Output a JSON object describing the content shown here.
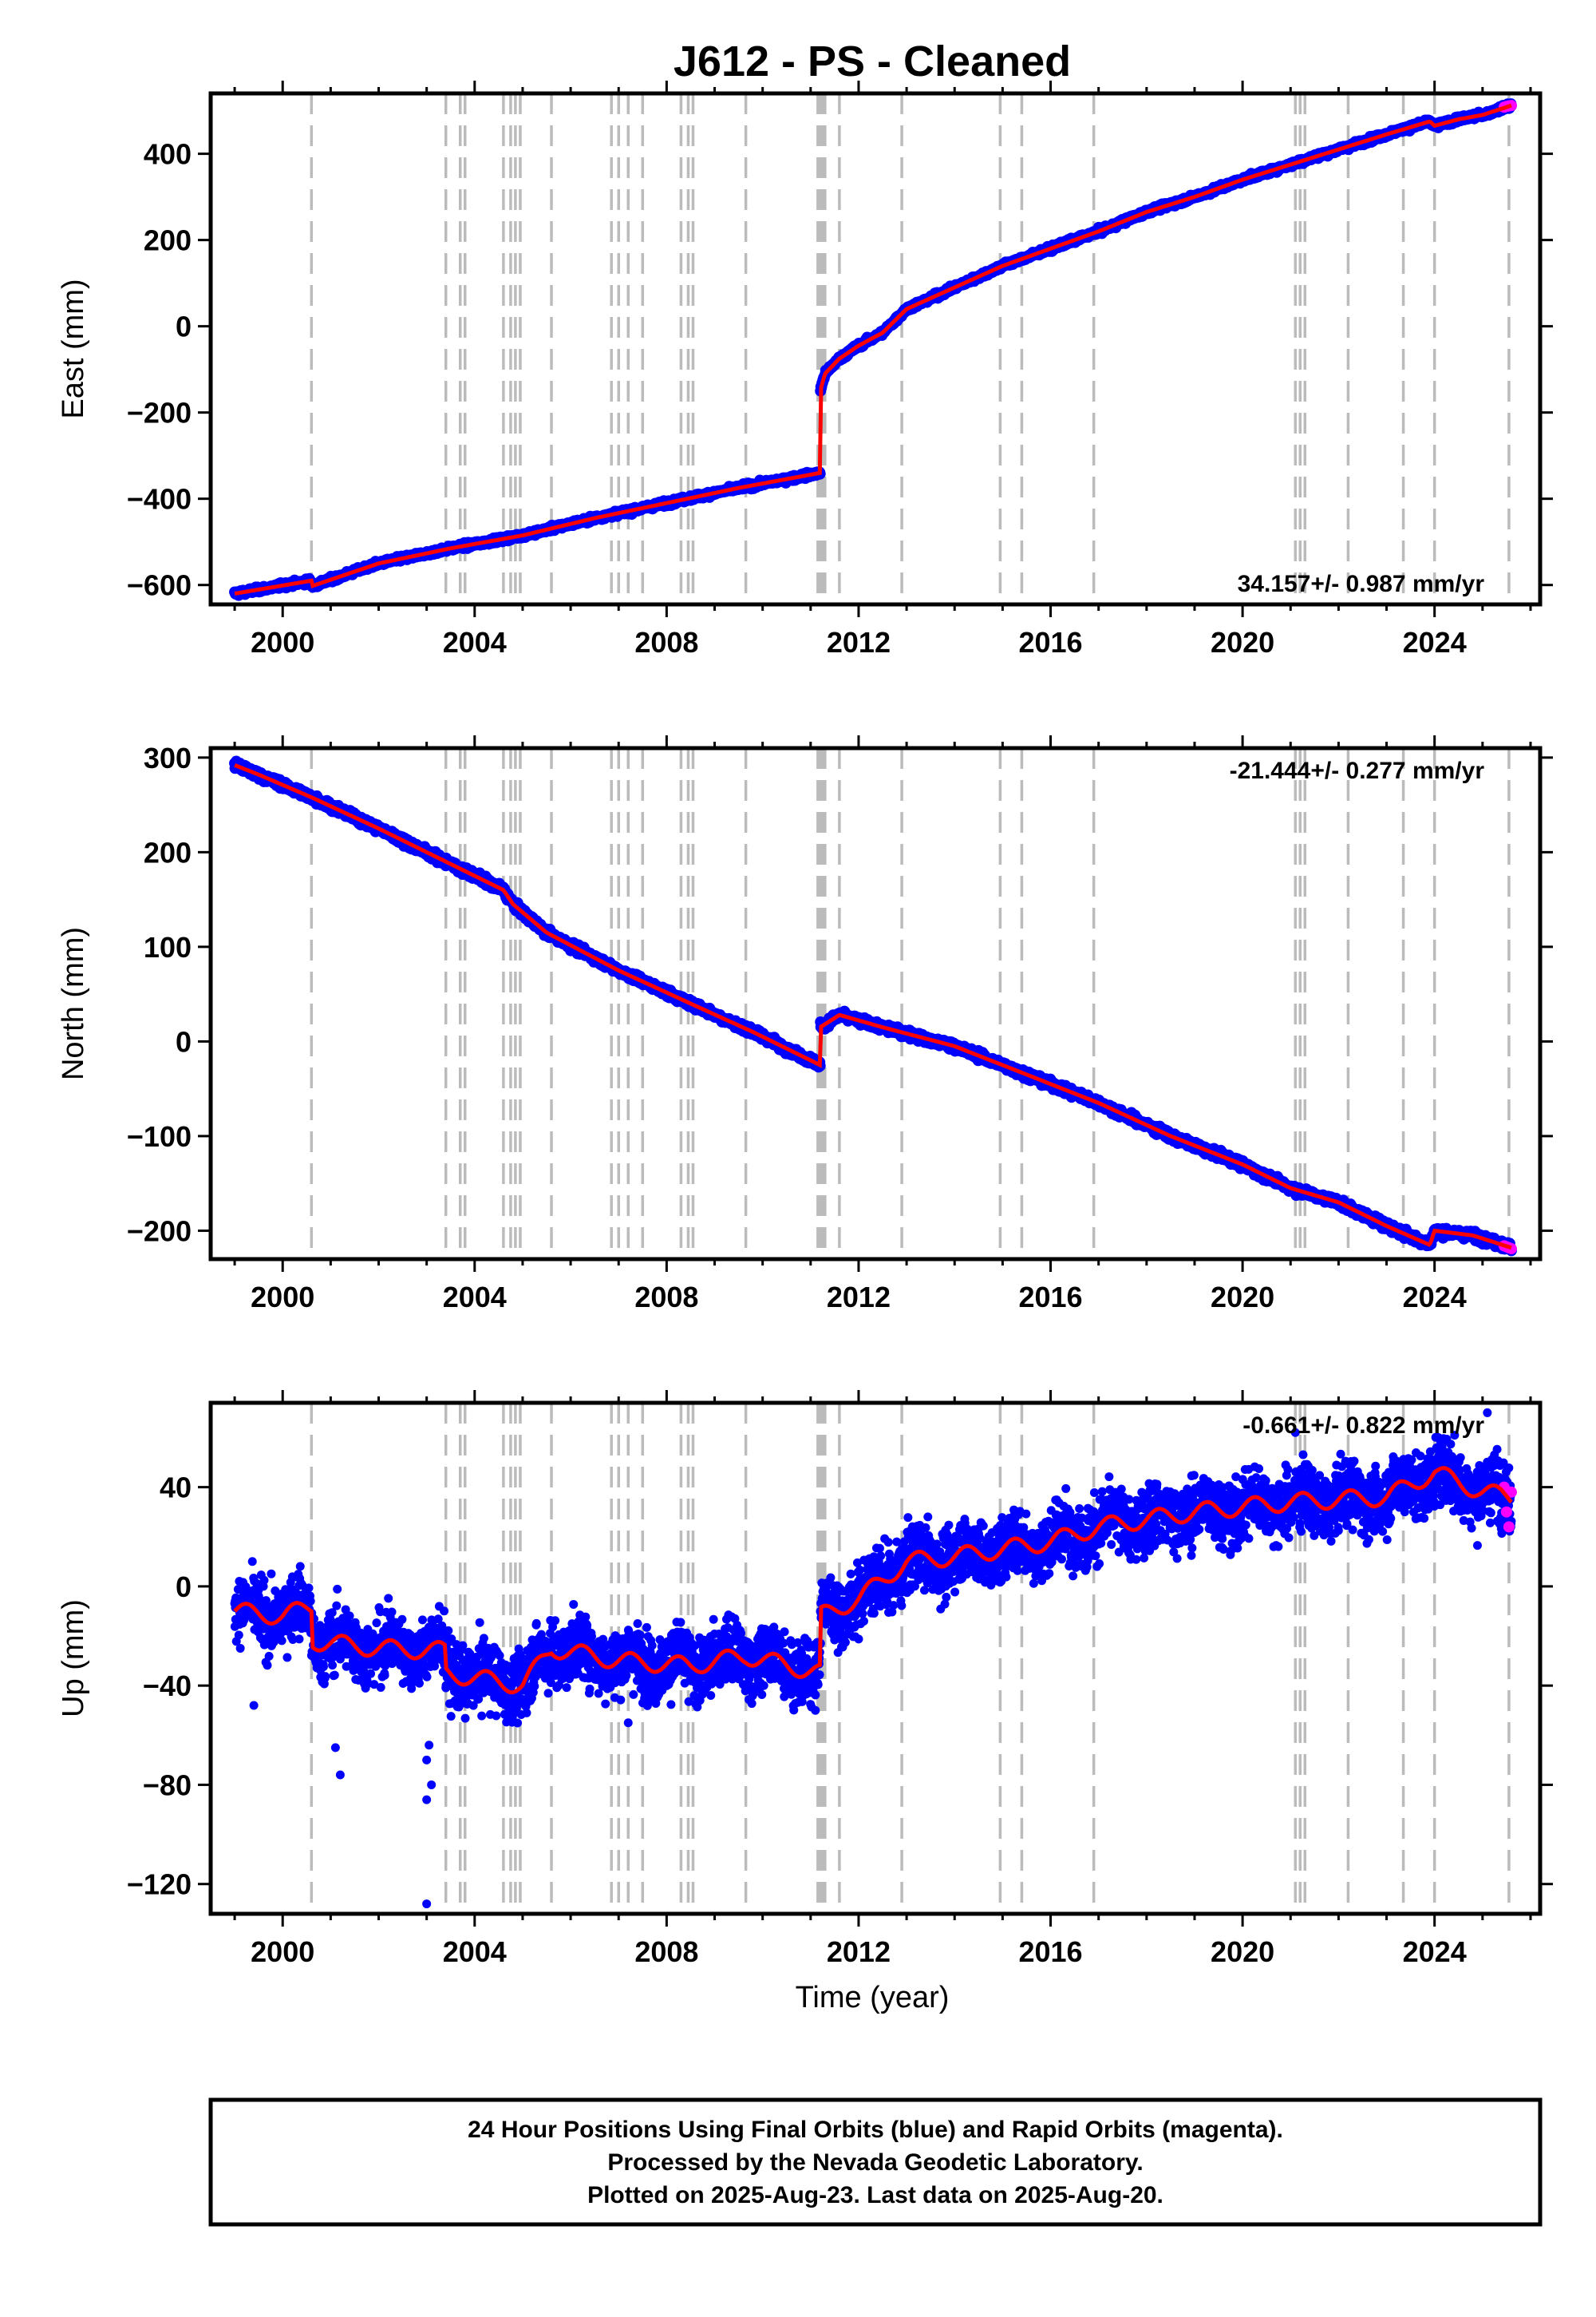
{
  "title": "J612  - PS - Cleaned",
  "xlabel": "Time (year)",
  "footer": [
    "24 Hour Positions Using Final Orbits (blue) and Rapid Orbits (magenta).",
    "Processed by the Nevada Geodetic Laboratory.",
    "Plotted on 2025-Aug-23. Last data on 2025-Aug-20."
  ],
  "colors": {
    "final": "#0000ff",
    "rapid": "#ff00ff",
    "model": "#ff0000",
    "event": "#bbbbbb"
  },
  "chart_data": [
    {
      "type": "scatter",
      "panel": "east",
      "ylabel": "East (mm)",
      "xlim": [
        1998.5,
        2026.2
      ],
      "ylim": [
        -645,
        540
      ],
      "xticks": [
        2000,
        2004,
        2008,
        2012,
        2016,
        2020,
        2024
      ],
      "yticks": [
        -600,
        -400,
        -200,
        0,
        200,
        400
      ],
      "rate_label": "34.157+/- 0.987 mm/yr",
      "rate_position": "bottom-right",
      "series": [
        {
          "role": "final",
          "x": [
            1999.0,
            2000.6,
            2000.6,
            2002.0,
            2003.5,
            2005.0,
            2006.5,
            2008.0,
            2009.5,
            2011.2,
            2011.2,
            2011.3,
            2011.6,
            2012.0,
            2012.5,
            2013.0,
            2014.0,
            2015.0,
            2016.0,
            2017.0,
            2018.0,
            2019.0,
            2020.0,
            2021.0,
            2022.0,
            2023.0,
            2023.9,
            2024.0,
            2024.5,
            2025.0,
            2025.6
          ],
          "y": [
            -620,
            -590,
            -603,
            -550,
            -515,
            -485,
            -445,
            -410,
            -375,
            -340,
            -150,
            -110,
            -75,
            -45,
            -15,
            40,
            90,
            140,
            180,
            220,
            265,
            300,
            340,
            375,
            410,
            445,
            475,
            465,
            480,
            490,
            512
          ]
        },
        {
          "role": "rapid",
          "x": [
            2025.45,
            2025.5,
            2025.55,
            2025.6
          ],
          "y": [
            508,
            510,
            511,
            512
          ]
        }
      ],
      "events": [
        2000.6,
        2003.4,
        2003.7,
        2003.8,
        2004.6,
        2004.75,
        2004.85,
        2004.95,
        2005.6,
        2006.85,
        2007.0,
        2007.2,
        2007.5,
        2008.3,
        2008.45,
        2008.55,
        2009.65,
        2011.15,
        2011.2,
        2011.25,
        2011.3,
        2011.6,
        2012.9,
        2014.95,
        2015.4,
        2016.9,
        2021.1,
        2021.2,
        2021.3,
        2022.2,
        2023.35,
        2024.0,
        2025.55
      ]
    },
    {
      "type": "scatter",
      "panel": "north",
      "ylabel": "North (mm)",
      "xlim": [
        1998.5,
        2026.2
      ],
      "ylim": [
        -230,
        310
      ],
      "xticks": [
        2000,
        2004,
        2008,
        2012,
        2016,
        2020,
        2024
      ],
      "yticks": [
        -200,
        -100,
        0,
        100,
        200,
        300
      ],
      "rate_label": "-21.444+/- 0.277 mm/yr",
      "rate_position": "top-right",
      "series": [
        {
          "role": "final",
          "x": [
            1999.0,
            1999.5,
            2000.6,
            2002.0,
            2003.4,
            2004.6,
            2004.8,
            2005.5,
            2007.0,
            2008.5,
            2009.8,
            2011.2,
            2011.2,
            2011.6,
            2012.5,
            2014.0,
            2015.5,
            2017.0,
            2018.5,
            2020.0,
            2021.0,
            2022.0,
            2023.0,
            2023.9,
            2024.0,
            2024.8,
            2025.6
          ],
          "y": [
            292,
            282,
            258,
            225,
            190,
            160,
            145,
            115,
            75,
            40,
            10,
            -25,
            15,
            28,
            15,
            -5,
            -35,
            -65,
            -100,
            -130,
            -155,
            -170,
            -195,
            -215,
            -200,
            -205,
            -218
          ]
        },
        {
          "role": "rapid",
          "x": [
            2025.45,
            2025.5,
            2025.55,
            2025.6
          ],
          "y": [
            -216,
            -217,
            -218,
            -219
          ]
        }
      ],
      "events": [
        2000.6,
        2003.4,
        2003.7,
        2003.8,
        2004.6,
        2004.75,
        2004.85,
        2004.95,
        2005.6,
        2006.85,
        2007.0,
        2007.2,
        2007.5,
        2008.3,
        2008.45,
        2008.55,
        2009.65,
        2011.15,
        2011.2,
        2011.25,
        2011.3,
        2011.6,
        2012.9,
        2014.95,
        2015.4,
        2016.9,
        2021.1,
        2021.2,
        2021.3,
        2022.2,
        2023.35,
        2024.0,
        2025.55
      ]
    },
    {
      "type": "scatter",
      "panel": "up",
      "ylabel": "Up (mm)",
      "xlim": [
        1998.5,
        2026.2
      ],
      "ylim": [
        -132,
        74
      ],
      "xticks": [
        2000,
        2004,
        2008,
        2012,
        2016,
        2020,
        2024
      ],
      "yticks": [
        -120,
        -80,
        -40,
        0,
        40
      ],
      "rate_label": "-0.661+/- 0.822 mm/yr",
      "rate_position": "top-right",
      "series": [
        {
          "role": "final",
          "x": [
            1999.0,
            2000.0,
            2000.6,
            2000.6,
            2002.0,
            2003.4,
            2003.4,
            2005.0,
            2005.6,
            2007.0,
            2008.5,
            2009.65,
            2011.2,
            2011.2,
            2012.0,
            2013.0,
            2014.0,
            2015.0,
            2016.0,
            2017.0,
            2018.0,
            2019.0,
            2020.0,
            2021.0,
            2022.0,
            2023.0,
            2024.0,
            2024.5,
            2025.0,
            2025.6
          ],
          "y": [
            -10,
            -12,
            -8,
            -22,
            -25,
            -26,
            -35,
            -40,
            -25,
            -30,
            -32,
            -28,
            -35,
            -12,
            -5,
            10,
            12,
            15,
            18,
            24,
            27,
            30,
            32,
            34,
            35,
            36,
            46,
            42,
            38,
            36
          ],
          "scatter_sd": 9
        },
        {
          "role": "rapid",
          "x": [
            2025.45,
            2025.5,
            2025.55,
            2025.6
          ],
          "y": [
            40,
            30,
            24,
            38
          ]
        }
      ],
      "outliers": {
        "x": [
          1999.4,
          2001.1,
          2001.2,
          2003.0,
          2003.0,
          2003.1,
          2003.0,
          2003.05,
          2007.2,
          2011.1,
          2021.1,
          2025.1
        ],
        "y": [
          -48,
          -65,
          -76,
          -128,
          -86,
          -80,
          -70,
          -64,
          -55,
          -50,
          62,
          70
        ]
      },
      "events": [
        2000.6,
        2003.4,
        2003.7,
        2003.8,
        2004.6,
        2004.75,
        2004.85,
        2004.95,
        2005.6,
        2006.85,
        2007.0,
        2007.2,
        2007.5,
        2008.3,
        2008.45,
        2008.55,
        2009.65,
        2011.15,
        2011.2,
        2011.25,
        2011.3,
        2011.6,
        2012.9,
        2014.95,
        2015.4,
        2016.9,
        2021.1,
        2021.2,
        2021.3,
        2022.2,
        2023.35,
        2024.0,
        2025.55
      ]
    }
  ]
}
